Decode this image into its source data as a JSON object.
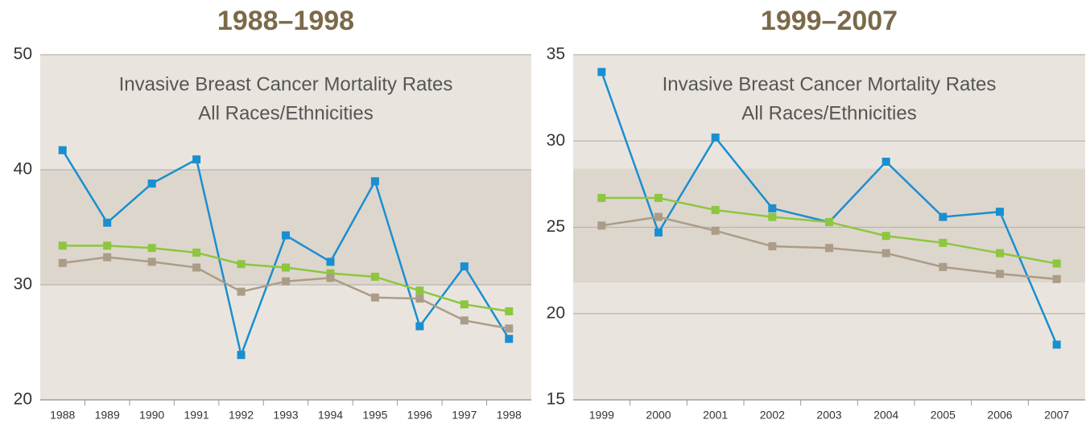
{
  "chart_data": [
    {
      "type": "line",
      "title": "1988–1998",
      "annotations": [
        "Invasive Breast Cancer Mortality Rates",
        "All Races/Ethnicities"
      ],
      "categories": [
        "1988",
        "1989",
        "1990",
        "1991",
        "1992",
        "1993",
        "1994",
        "1995",
        "1996",
        "1997",
        "1998"
      ],
      "series": [
        {
          "color": "#1a8fd0",
          "values": [
            41.7,
            35.4,
            38.8,
            40.9,
            23.9,
            34.3,
            32.0,
            39.0,
            26.4,
            31.6,
            25.3
          ]
        },
        {
          "color": "#8dc63f",
          "values": [
            33.4,
            33.4,
            33.2,
            32.8,
            31.8,
            31.5,
            31.0,
            30.7,
            29.5,
            28.3,
            27.7
          ]
        },
        {
          "color": "#ab9c88",
          "values": [
            31.9,
            32.4,
            32.0,
            31.5,
            29.4,
            30.3,
            30.6,
            28.9,
            28.8,
            26.9,
            26.2
          ]
        }
      ],
      "ylim": [
        20,
        50
      ],
      "yticks": [
        20,
        30,
        40,
        50
      ],
      "grid": true,
      "band": [
        30,
        40
      ]
    },
    {
      "type": "line",
      "title": "1999–2007",
      "annotations": [
        "Invasive Breast Cancer Mortality Rates",
        "All Races/Ethnicities"
      ],
      "categories": [
        "1999",
        "2000",
        "2001",
        "2002",
        "2003",
        "2004",
        "2005",
        "2006",
        "2007"
      ],
      "series": [
        {
          "color": "#1a8fd0",
          "values": [
            34.0,
            24.7,
            30.2,
            26.1,
            25.3,
            28.8,
            25.6,
            25.9,
            18.2
          ]
        },
        {
          "color": "#8dc63f",
          "values": [
            26.7,
            26.7,
            26.0,
            25.6,
            25.3,
            24.5,
            24.1,
            23.5,
            22.9
          ]
        },
        {
          "color": "#ab9c88",
          "values": [
            25.1,
            25.6,
            24.8,
            23.9,
            23.8,
            23.5,
            22.7,
            22.3,
            22.0
          ]
        }
      ],
      "ylim": [
        15,
        35
      ],
      "yticks": [
        15,
        20,
        25,
        30,
        35
      ],
      "grid": true,
      "band": [
        21.8,
        28.4
      ]
    }
  ]
}
